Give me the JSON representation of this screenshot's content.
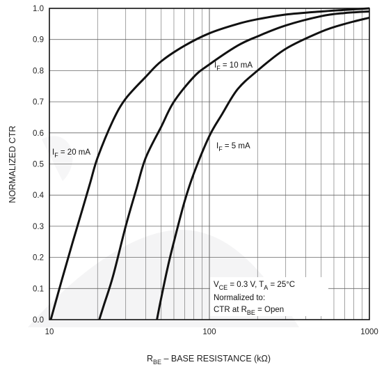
{
  "chart_data": {
    "type": "line",
    "xscale": "log",
    "xlim": [
      10,
      1000
    ],
    "ylim": [
      0,
      1.0
    ],
    "grid": true,
    "xticks": [
      10,
      100,
      1000
    ],
    "xtick_labels": [
      "10",
      "100",
      "1000"
    ],
    "yticks": [
      0.0,
      0.1,
      0.2,
      0.3,
      0.4,
      0.5,
      0.6,
      0.7,
      0.8,
      0.9,
      1.0
    ],
    "ytick_labels": [
      "0.0",
      "0.1",
      "0.2",
      "0.3",
      "0.4",
      "0.5",
      "0.6",
      "0.7",
      "0.8",
      "0.9",
      "1.0"
    ],
    "xlabel": {
      "main": "R",
      "sub": "BE",
      "rest": " – BASE RESISTANCE (kΩ)"
    },
    "ylabel": "NORMALIZED CTR",
    "series": [
      {
        "label": {
          "main": "I",
          "sub": "F",
          "rest": " = 20 mA"
        },
        "x": [
          10.2,
          12,
          14,
          16,
          18,
          20,
          25,
          30,
          40,
          50,
          70,
          100,
          150,
          200,
          300,
          500,
          700,
          1000
        ],
        "y": [
          0.0,
          0.13,
          0.25,
          0.35,
          0.44,
          0.52,
          0.64,
          0.71,
          0.78,
          0.83,
          0.88,
          0.92,
          0.95,
          0.965,
          0.98,
          0.99,
          0.995,
          1.0
        ]
      },
      {
        "label": {
          "main": "I",
          "sub": "F",
          "rest": " = 10 mA"
        },
        "x": [
          20.5,
          22,
          25,
          30,
          35,
          40,
          50,
          60,
          80,
          100,
          150,
          200,
          300,
          500,
          700,
          1000
        ],
        "y": [
          0.0,
          0.05,
          0.14,
          0.3,
          0.42,
          0.52,
          0.62,
          0.7,
          0.78,
          0.82,
          0.88,
          0.91,
          0.945,
          0.975,
          0.985,
          0.99
        ]
      },
      {
        "label": {
          "main": "I",
          "sub": "F",
          "rest": " = 5 mA"
        },
        "x": [
          47,
          50,
          55,
          60,
          70,
          80,
          100,
          120,
          150,
          200,
          300,
          500,
          700,
          1000
        ],
        "y": [
          0.0,
          0.07,
          0.17,
          0.25,
          0.38,
          0.47,
          0.59,
          0.66,
          0.74,
          0.8,
          0.87,
          0.925,
          0.95,
          0.97
        ]
      }
    ],
    "annotation": [
      {
        "main": "V",
        "sub": "CE",
        "mid": " = 0.3 V, T",
        "sub2": "A",
        "rest": " = 25°C"
      },
      {
        "main": "Normalized to:"
      },
      {
        "main": "CTR at R",
        "sub": "BE",
        "rest": " = Open"
      }
    ]
  }
}
